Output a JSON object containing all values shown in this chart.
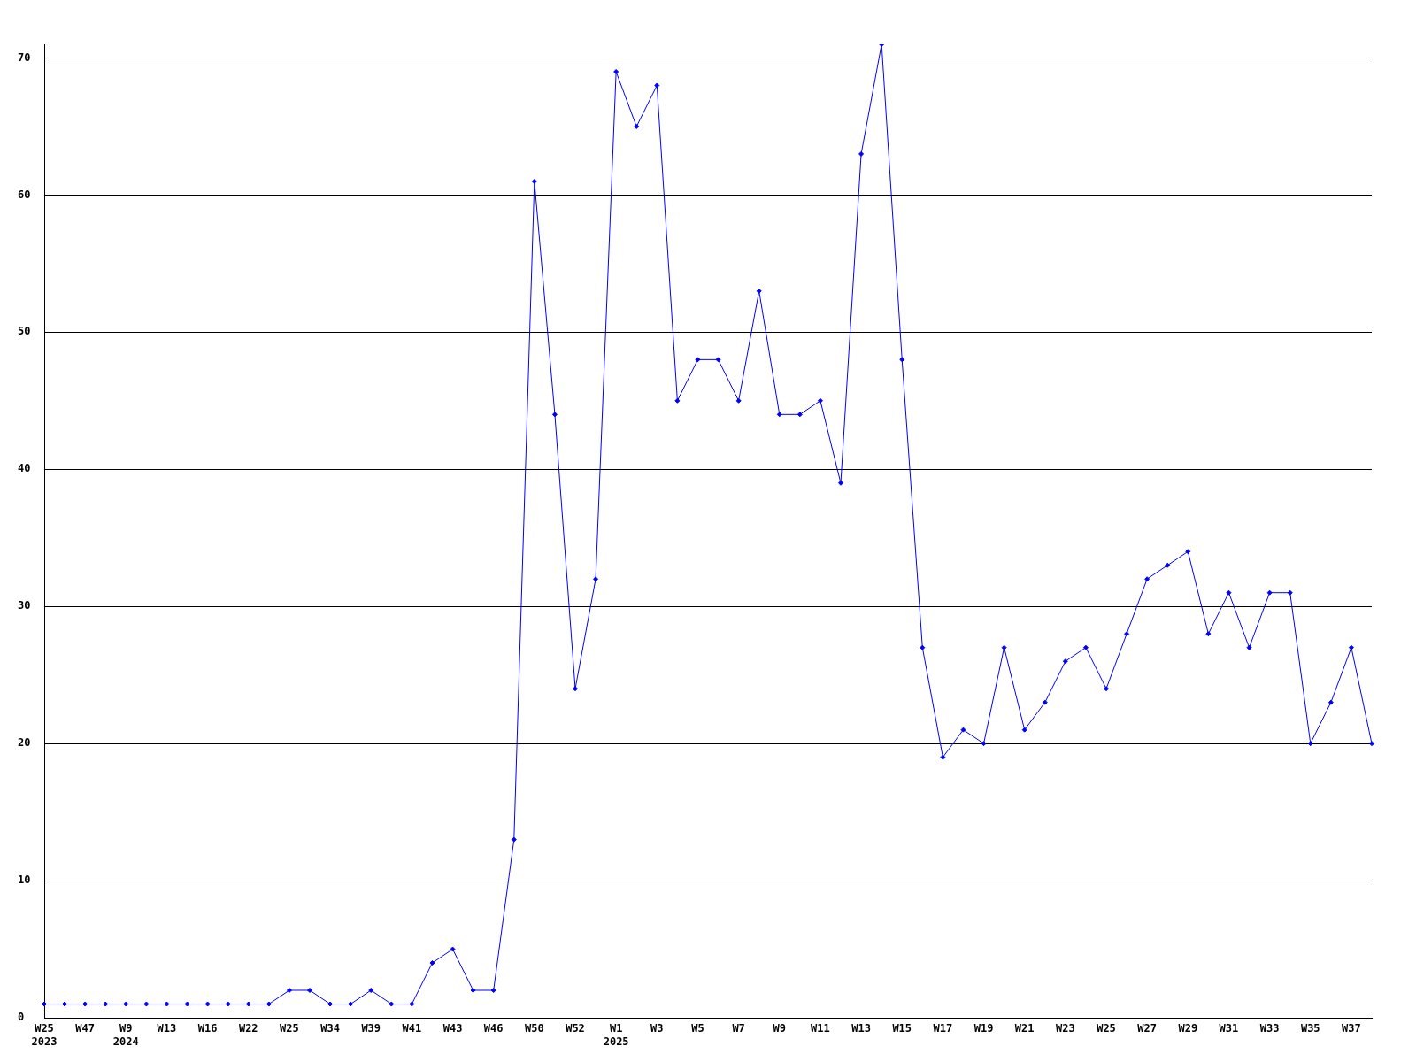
{
  "chart_data": {
    "type": "line",
    "categories": [
      "W25\n2023",
      null,
      "W47",
      null,
      "W9\n2024",
      null,
      "W13",
      null,
      "W16",
      null,
      "W22",
      null,
      "W25",
      null,
      "W34",
      null,
      "W39",
      null,
      "W41",
      null,
      "W43",
      null,
      "W46",
      null,
      "W50",
      null,
      "W52",
      null,
      "W1\n2025",
      null,
      "W3",
      null,
      "W5",
      null,
      "W7",
      null,
      "W9",
      null,
      "W11",
      null,
      "W13",
      null,
      "W15",
      null,
      "W17",
      null,
      "W19",
      null,
      "W21",
      null,
      "W23",
      null,
      "W25",
      null,
      "W27",
      null,
      "W29",
      null,
      "W31",
      null,
      "W33",
      null,
      "W35",
      null,
      "W37",
      null
    ],
    "series": [
      {
        "color": "#0000ff",
        "values": [
          1,
          1,
          1,
          1,
          1,
          1,
          1,
          1,
          1,
          1,
          1,
          1,
          2,
          2,
          1,
          1,
          2,
          1,
          1,
          4,
          5,
          2,
          2,
          13,
          61,
          44,
          24,
          32,
          69,
          65,
          68,
          45,
          48,
          48,
          45,
          53,
          44,
          44,
          45,
          39,
          63,
          71,
          48,
          27,
          19,
          21,
          20,
          27,
          21,
          23,
          26,
          27,
          24,
          28,
          32,
          33,
          34,
          28,
          31,
          27,
          31,
          31,
          20,
          23,
          27,
          20
        ]
      }
    ],
    "ylim": [
      0,
      71
    ],
    "yticks": [
      0,
      10,
      20,
      30,
      40,
      50,
      60,
      70
    ],
    "grid": "y",
    "marker": "diamond",
    "line_style": "solid"
  }
}
